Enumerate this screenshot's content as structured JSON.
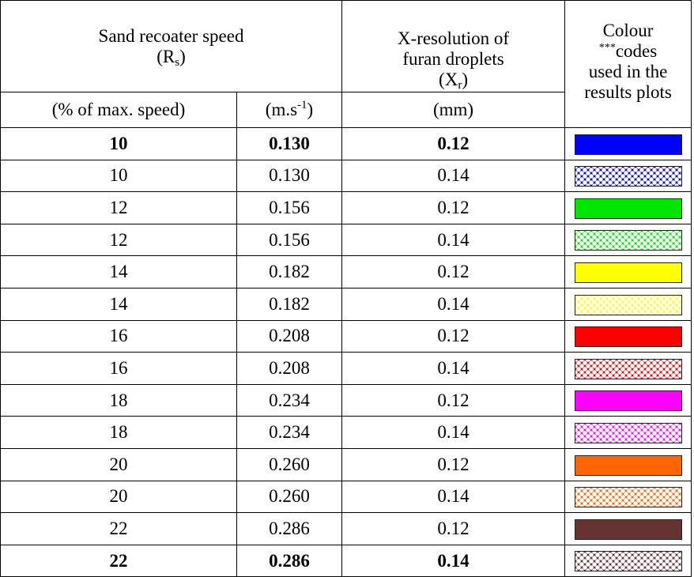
{
  "header": {
    "recoater_title": "Sand recoater speed",
    "recoater_symbol_base": "(R",
    "recoater_symbol_sub": "s",
    "recoater_symbol_close": ")",
    "xres_line1": "X-resolution of",
    "xres_line2": "furan droplets",
    "xres_symbol_base": "(X",
    "xres_symbol_sub": "r",
    "xres_symbol_close": ")",
    "colour_line1": "Colour",
    "colour_stars": "***",
    "colour_line2": "codes",
    "colour_line3": "used in the",
    "colour_line4": "results plots",
    "unit_percent": "(% of max. speed)",
    "unit_speed_base": "(m.s",
    "unit_speed_sup": "-1",
    "unit_speed_close": ")",
    "unit_mm": "(mm)"
  },
  "rows": [
    {
      "percent": "10",
      "speed": "0.130",
      "xres": "0.12",
      "bold": true,
      "color": "#0000ff",
      "pattern": false
    },
    {
      "percent": "10",
      "speed": "0.130",
      "xres": "0.14",
      "bold": false,
      "color": "#0000ff",
      "pattern": true
    },
    {
      "percent": "12",
      "speed": "0.156",
      "xres": "0.12",
      "bold": false,
      "color": "#00e600",
      "pattern": false
    },
    {
      "percent": "12",
      "speed": "0.156",
      "xres": "0.14",
      "bold": false,
      "color": "#00e600",
      "pattern": true
    },
    {
      "percent": "14",
      "speed": "0.182",
      "xres": "0.12",
      "bold": false,
      "color": "#ffff00",
      "pattern": false
    },
    {
      "percent": "14",
      "speed": "0.182",
      "xres": "0.14",
      "bold": false,
      "color": "#ffff00",
      "pattern": true
    },
    {
      "percent": "16",
      "speed": "0.208",
      "xres": "0.12",
      "bold": false,
      "color": "#ff0000",
      "pattern": false
    },
    {
      "percent": "16",
      "speed": "0.208",
      "xres": "0.14",
      "bold": false,
      "color": "#ff0000",
      "pattern": true
    },
    {
      "percent": "18",
      "speed": "0.234",
      "xres": "0.12",
      "bold": false,
      "color": "#ff00ff",
      "pattern": false
    },
    {
      "percent": "18",
      "speed": "0.234",
      "xres": "0.14",
      "bold": false,
      "color": "#ff00ff",
      "pattern": true
    },
    {
      "percent": "20",
      "speed": "0.260",
      "xres": "0.12",
      "bold": false,
      "color": "#ff6600",
      "pattern": false
    },
    {
      "percent": "20",
      "speed": "0.260",
      "xres": "0.14",
      "bold": false,
      "color": "#ff6600",
      "pattern": true
    },
    {
      "percent": "22",
      "speed": "0.286",
      "xres": "0.12",
      "bold": false,
      "color": "#663333",
      "pattern": false
    },
    {
      "percent": "22",
      "speed": "0.286",
      "xres": "0.14",
      "bold": true,
      "color": "#663333",
      "pattern": true
    }
  ]
}
